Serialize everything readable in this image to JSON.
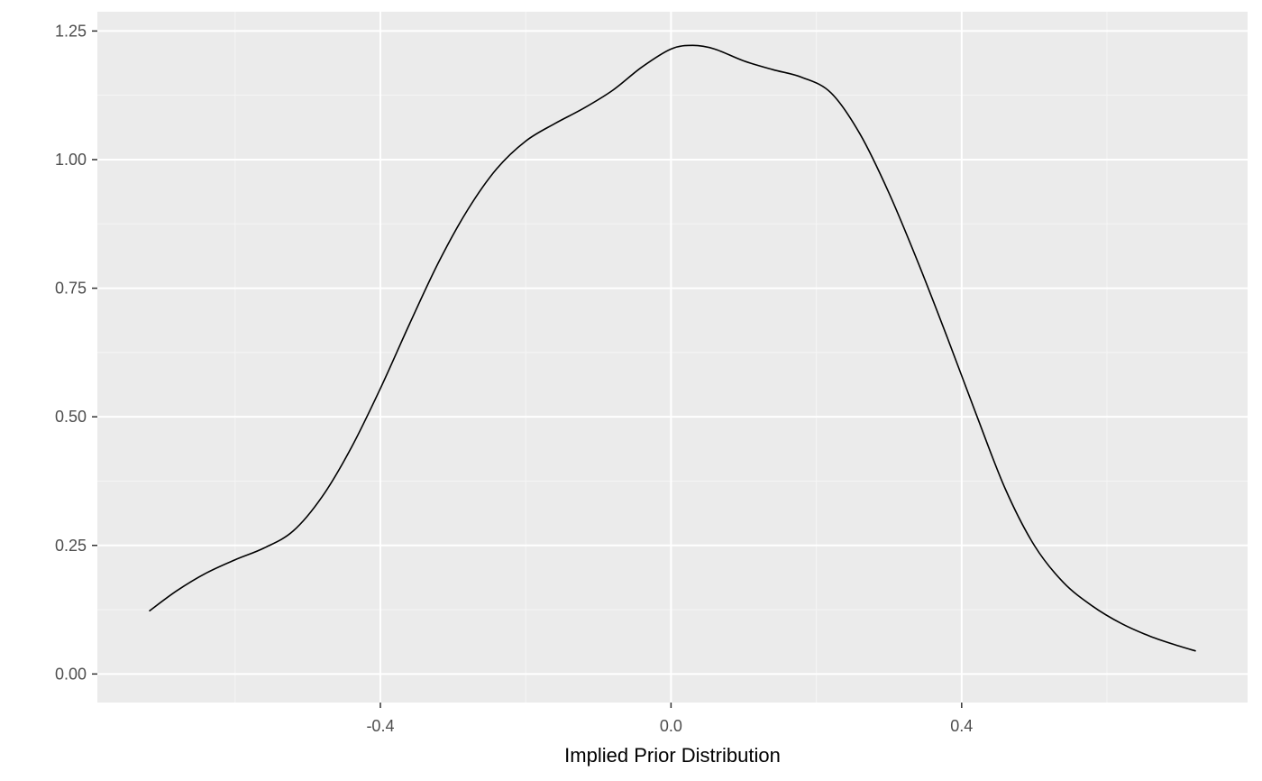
{
  "chart_data": {
    "type": "line",
    "title": "",
    "xlabel": "Implied Prior Distribution",
    "ylabel": "",
    "xlim": [
      -0.7895,
      0.7935
    ],
    "ylim": [
      -0.0555,
      1.2875
    ],
    "x_ticks": [
      {
        "value": -0.4,
        "label": "-0.4"
      },
      {
        "value": 0.0,
        "label": "0.0"
      },
      {
        "value": 0.4,
        "label": "0.4"
      }
    ],
    "y_ticks": [
      {
        "value": 0.0,
        "label": "0.00"
      },
      {
        "value": 0.25,
        "label": "0.25"
      },
      {
        "value": 0.5,
        "label": "0.50"
      },
      {
        "value": 0.75,
        "label": "0.75"
      },
      {
        "value": 1.0,
        "label": "1.00"
      },
      {
        "value": 1.25,
        "label": "1.25"
      }
    ],
    "x_minor_breaks": [
      -0.6,
      -0.2,
      0.2,
      0.6
    ],
    "y_minor_breaks": [
      0.125,
      0.375,
      0.625,
      0.875,
      1.125
    ],
    "grid": true,
    "legend": "none",
    "colors": {
      "panel_background": "#ebebeb",
      "grid_major": "#ffffff",
      "grid_minor": "#f5f5f5",
      "line": "#000000",
      "tick_text": "#4d4d4d",
      "axis_title": "#000000"
    },
    "series": [
      {
        "x": [
          -0.7175,
          -0.68,
          -0.64,
          -0.6,
          -0.56,
          -0.52,
          -0.48,
          -0.44,
          -0.4,
          -0.36,
          -0.32,
          -0.28,
          -0.24,
          -0.2,
          -0.16,
          -0.12,
          -0.08,
          -0.04,
          0.0,
          0.03,
          0.06,
          0.1,
          0.14,
          0.18,
          0.22,
          0.26,
          0.3,
          0.34,
          0.38,
          0.42,
          0.46,
          0.5,
          0.54,
          0.58,
          0.62,
          0.66,
          0.7,
          0.7215
        ],
        "y": [
          0.123,
          0.162,
          0.196,
          0.222,
          0.245,
          0.278,
          0.345,
          0.44,
          0.555,
          0.68,
          0.8,
          0.902,
          0.982,
          1.036,
          1.07,
          1.1,
          1.135,
          1.18,
          1.215,
          1.222,
          1.215,
          1.192,
          1.175,
          1.16,
          1.13,
          1.05,
          0.935,
          0.8,
          0.655,
          0.505,
          0.36,
          0.25,
          0.178,
          0.132,
          0.098,
          0.073,
          0.054,
          0.045
        ]
      }
    ]
  }
}
